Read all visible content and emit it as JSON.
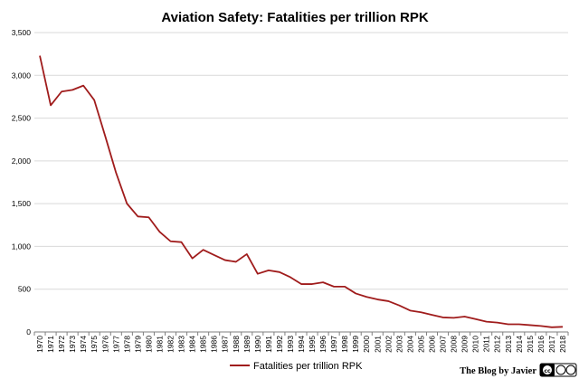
{
  "chart_data": {
    "type": "line",
    "title": "Aviation Safety: Fatalities per trillion RPK",
    "xlabel": "",
    "ylabel": "",
    "ylim": [
      0,
      3500
    ],
    "yticks": [
      "0",
      "500",
      "1,000",
      "1,500",
      "2,000",
      "2,500",
      "3,000",
      "3,500"
    ],
    "ytick_values": [
      0,
      500,
      1000,
      1500,
      2000,
      2500,
      3000,
      3500
    ],
    "grid": true,
    "legend_position": "bottom",
    "x": [
      "1970",
      "1971",
      "1972",
      "1973",
      "1974",
      "1975",
      "1976",
      "1977",
      "1978",
      "1979",
      "1980",
      "1981",
      "1982",
      "1983",
      "1984",
      "1985",
      "1986",
      "1987",
      "1988",
      "1989",
      "1990",
      "1991",
      "1992",
      "1993",
      "1994",
      "1995",
      "1996",
      "1997",
      "1998",
      "1999",
      "2000",
      "2001",
      "2002",
      "2003",
      "2004",
      "2005",
      "2006",
      "2007",
      "2008",
      "2009",
      "2010",
      "2011",
      "2012",
      "2013",
      "2014",
      "2015",
      "2016",
      "2017",
      "2018"
    ],
    "series": [
      {
        "name": "Fatalities per trillion RPK",
        "color": "#a01c1c",
        "values": [
          3230,
          2650,
          2810,
          2830,
          2880,
          2710,
          2290,
          1860,
          1500,
          1350,
          1340,
          1170,
          1060,
          1050,
          860,
          960,
          900,
          840,
          820,
          910,
          680,
          720,
          700,
          640,
          560,
          560,
          580,
          530,
          530,
          450,
          410,
          380,
          360,
          310,
          250,
          230,
          200,
          170,
          165,
          180,
          150,
          120,
          110,
          90,
          90,
          80,
          70,
          55,
          60
        ]
      }
    ]
  },
  "credit": {
    "text": "The Blog by Javier",
    "badge_icon": "cc-license-icon",
    "badge_text": "cc"
  }
}
